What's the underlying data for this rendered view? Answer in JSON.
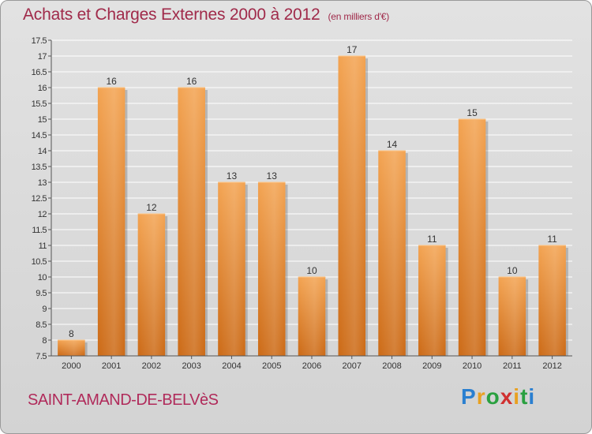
{
  "title": "Achats et Charges Externes 2000 à 2012",
  "subtitle": "(en milliers d'€)",
  "commune": "SAINT-AMAND-DE-BELVèS",
  "logo": {
    "letters": [
      "P",
      "r",
      "o",
      "x",
      "i",
      "t",
      "i"
    ],
    "colors": [
      "#2a7fd0",
      "#e8a020",
      "#2aa040",
      "#d03030",
      "#e8a020",
      "#2aa040",
      "#2a7fd0"
    ]
  },
  "colors": {
    "bar": "#e8913a",
    "bar_dark": "#c96a18",
    "title": "#a02a4a"
  },
  "chart_data": {
    "type": "bar",
    "categories": [
      "2000",
      "2001",
      "2002",
      "2003",
      "2004",
      "2005",
      "2006",
      "2007",
      "2008",
      "2009",
      "2010",
      "2011",
      "2012"
    ],
    "values": [
      8,
      16,
      12,
      16,
      13,
      13,
      10,
      17,
      14,
      11,
      15,
      10,
      11
    ],
    "ylim": [
      7.5,
      17.5
    ],
    "yticks": [
      "7.5",
      "8",
      "8.5",
      "9",
      "9.5",
      "10",
      "10.5",
      "11",
      "11.5",
      "12",
      "12.5",
      "13",
      "13.5",
      "14",
      "14.5",
      "15",
      "15.5",
      "16",
      "16.5",
      "17",
      "17.5"
    ],
    "grid": true,
    "xlabel": "",
    "ylabel": ""
  }
}
